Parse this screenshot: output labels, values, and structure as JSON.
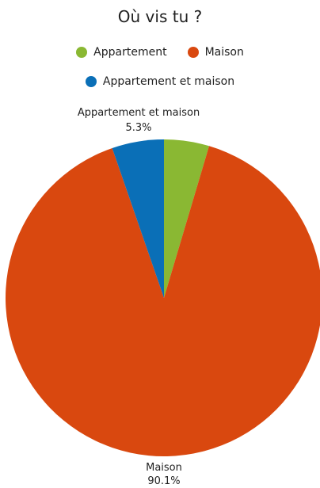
{
  "chart_data": {
    "type": "pie",
    "title": "Où vis tu ?",
    "slices": [
      {
        "label": "Appartement",
        "value": 4.6,
        "display_value": "",
        "color": "#8ab833"
      },
      {
        "label": "Maison",
        "value": 90.1,
        "display_value": "90.1%",
        "color": "#d9480f"
      },
      {
        "label": "Appartement et maison",
        "value": 5.3,
        "display_value": "5.3%",
        "color": "#0a6fb7"
      }
    ],
    "legend_position": "top",
    "start_angle_deg": 0,
    "direction": "clockwise"
  }
}
